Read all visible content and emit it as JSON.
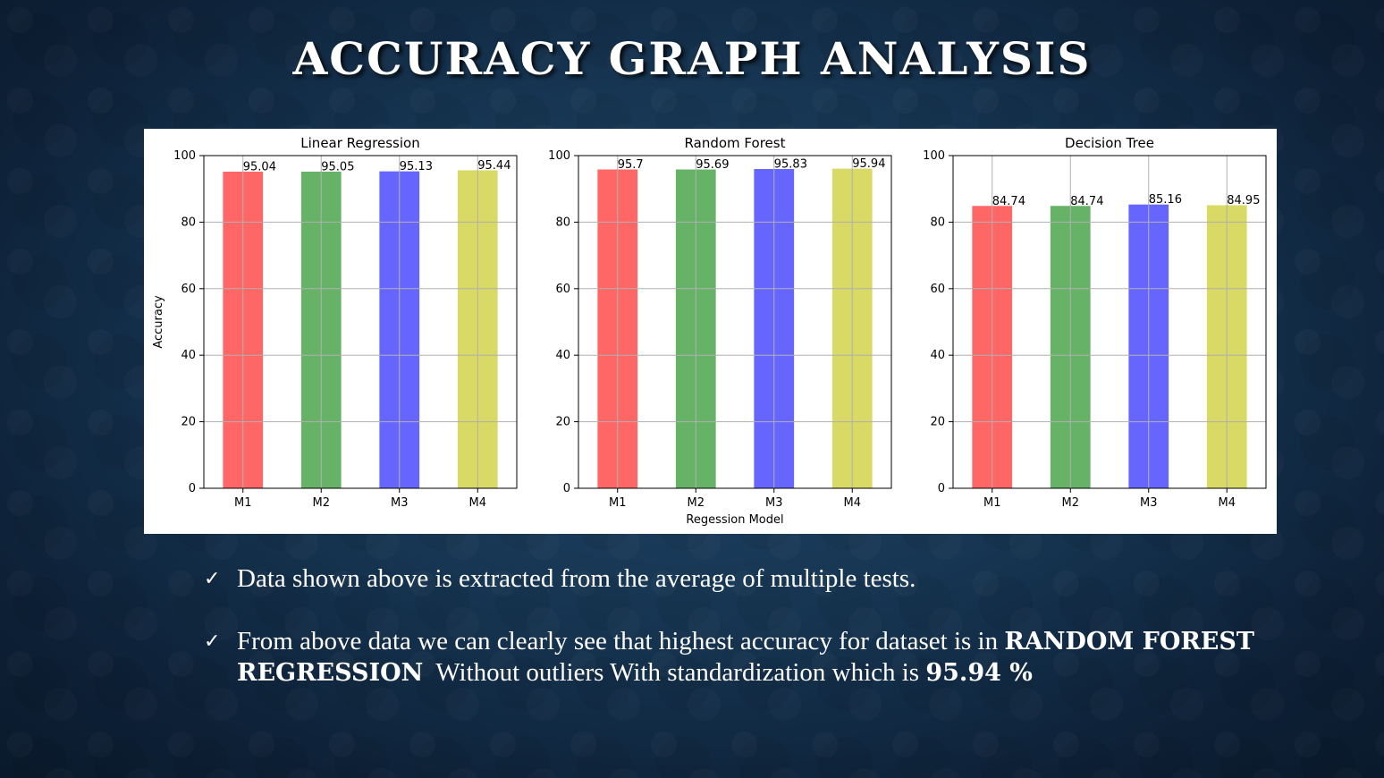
{
  "title": "ACCURACY GRAPH ANALYSIS",
  "chart_data": [
    {
      "type": "bar",
      "title": "Linear Regression",
      "ylabel": "Accuracy",
      "xlabel": "",
      "categories": [
        "M1",
        "M2",
        "M3",
        "M4"
      ],
      "values": [
        95.04,
        95.05,
        95.13,
        95.44
      ],
      "value_labels": [
        "95.04",
        "95.05",
        "95.13",
        "95.44"
      ],
      "colors": [
        "#ff6666",
        "#66b266",
        "#6666ff",
        "#d9d966"
      ],
      "ylim": [
        0,
        100
      ],
      "yticks": [
        "0",
        "20",
        "40",
        "60",
        "80",
        "100"
      ],
      "grid": true
    },
    {
      "type": "bar",
      "title": "Random Forest",
      "ylabel": "",
      "xlabel": "Regession Model",
      "categories": [
        "M1",
        "M2",
        "M3",
        "M4"
      ],
      "values": [
        95.7,
        95.69,
        95.83,
        95.94
      ],
      "value_labels": [
        "95.7",
        "95.69",
        "95.83",
        "95.94"
      ],
      "colors": [
        "#ff6666",
        "#66b266",
        "#6666ff",
        "#d9d966"
      ],
      "ylim": [
        0,
        100
      ],
      "yticks": [
        "0",
        "20",
        "40",
        "60",
        "80",
        "100"
      ],
      "grid": true
    },
    {
      "type": "bar",
      "title": "Decision Tree",
      "ylabel": "",
      "xlabel": "",
      "categories": [
        "M1",
        "M2",
        "M3",
        "M4"
      ],
      "values": [
        84.74,
        84.74,
        85.16,
        84.95
      ],
      "value_labels": [
        "84.74",
        "84.74",
        "85.16",
        "84.95"
      ],
      "colors": [
        "#ff6666",
        "#66b266",
        "#6666ff",
        "#d9d966"
      ],
      "ylim": [
        0,
        100
      ],
      "yticks": [
        "0",
        "20",
        "40",
        "60",
        "80",
        "100"
      ],
      "grid": true
    }
  ],
  "bullets": {
    "check_icon": "✓",
    "b1": "Data shown above is extracted from the average of multiple tests.",
    "b2_pre": "From above data we can clearly see that highest accuracy for dataset is in ",
    "b2_bold": "RANDOM FOREST REGRESSION",
    "b2_mid": "  Without outliers With standardization which is ",
    "b2_value": "95.94 %"
  }
}
